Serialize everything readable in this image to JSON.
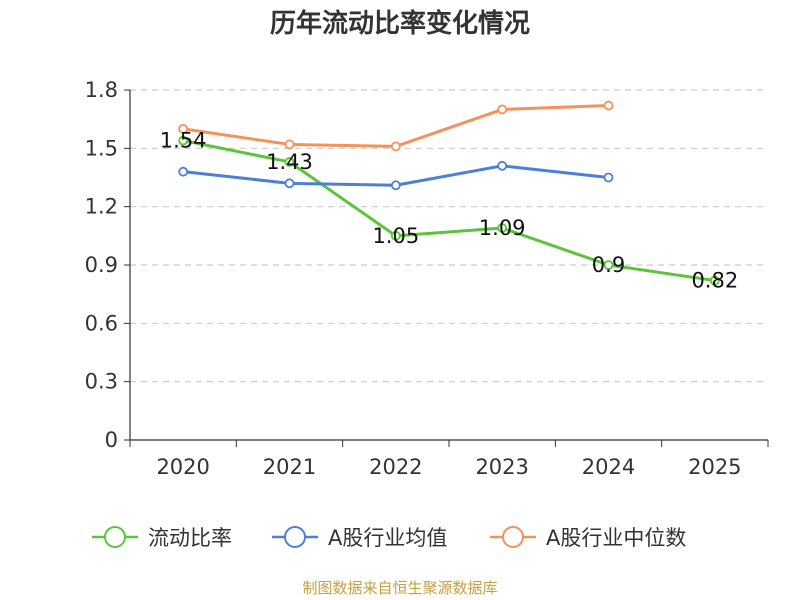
{
  "chart_data": {
    "type": "line",
    "title": "历年流动比率变化情况",
    "categories": [
      "2020",
      "2021",
      "2022",
      "2023",
      "2024",
      "2025"
    ],
    "ylim": [
      0,
      1.8
    ],
    "yticks": [
      "0",
      "0.3",
      "0.6",
      "0.9",
      "1.2",
      "1.5",
      "1.8"
    ],
    "grid": true,
    "legend_position": "bottom",
    "series": [
      {
        "name": "流动比率",
        "color": "#5cc43a",
        "values": [
          1.54,
          1.43,
          1.05,
          1.09,
          0.9,
          0.82
        ],
        "labels": [
          "1.54",
          "1.43",
          "1.05",
          "1.09",
          "0.9",
          "0.82"
        ]
      },
      {
        "name": "A股行业均值",
        "color": "#4c7fd6",
        "values": [
          1.38,
          1.32,
          1.31,
          1.41,
          1.35,
          null
        ]
      },
      {
        "name": "A股行业中位数",
        "color": "#f5915a",
        "values": [
          1.6,
          1.52,
          1.51,
          1.7,
          1.72,
          null
        ]
      }
    ],
    "source": "制图数据来自恒生聚源数据库"
  }
}
